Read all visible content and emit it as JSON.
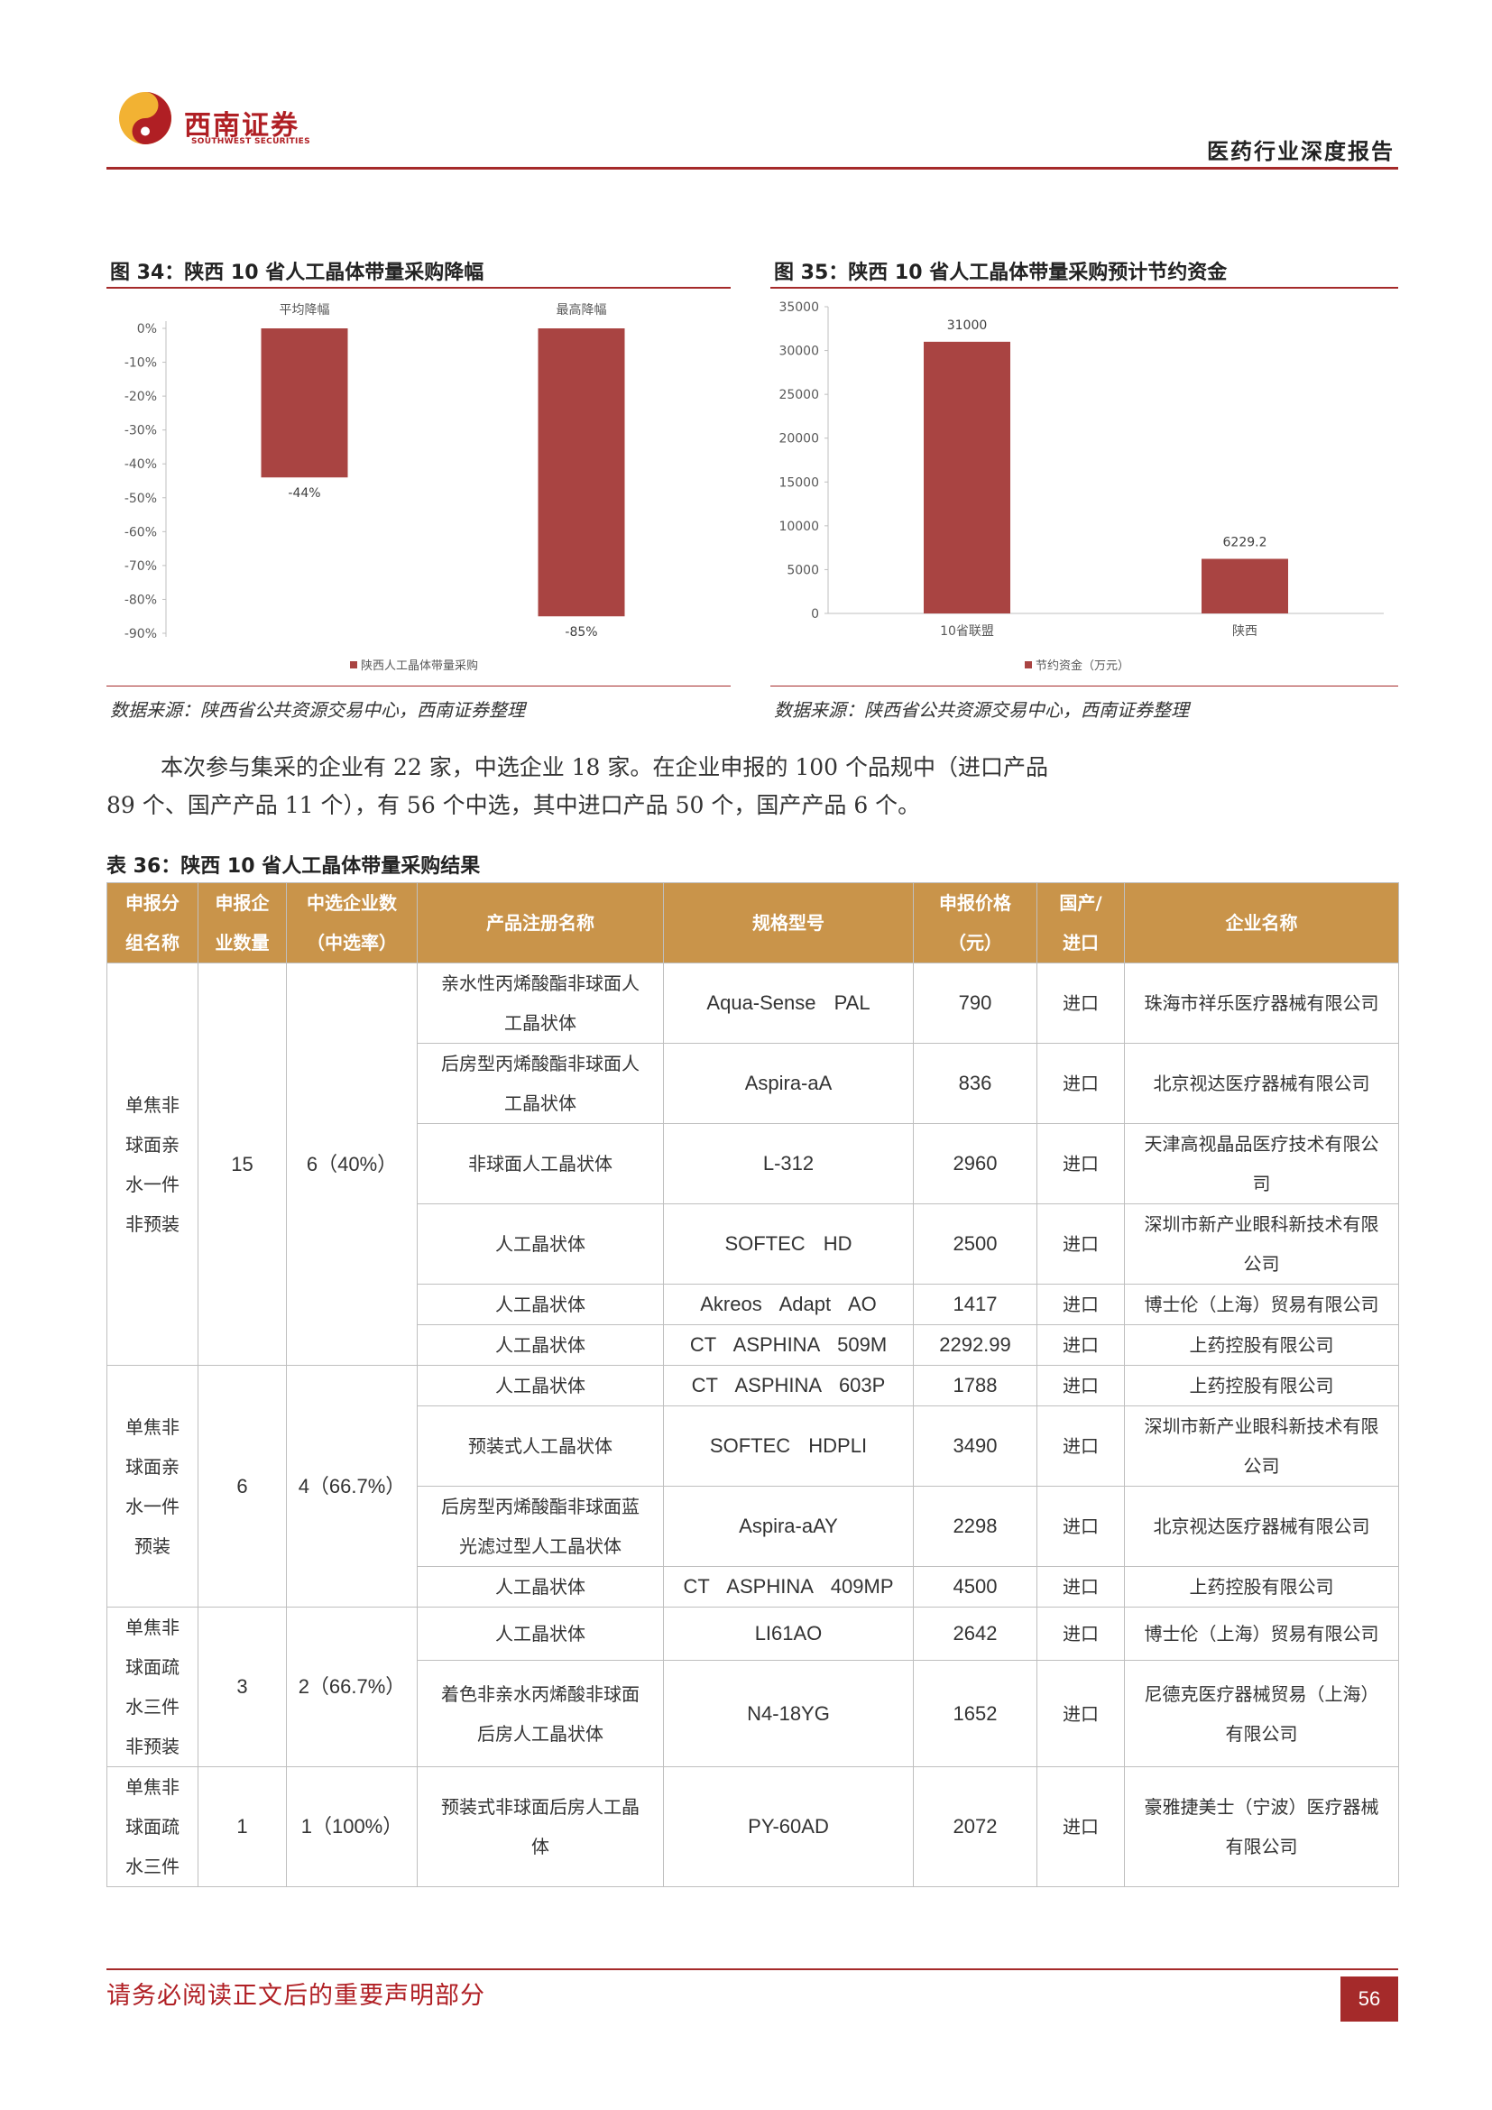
{
  "header": {
    "logo_cn": "西南证券",
    "logo_en": "SOUTHWEST SECURITIES",
    "report_title": "医药行业深度报告"
  },
  "figures": [
    {
      "title": "图 34：陕西 10 省人工晶体带量采购降幅",
      "source": "数据来源：陕西省公共资源交易中心，西南证券整理"
    },
    {
      "title": "图 35：陕西 10 省人工晶体带量采购预计节约资金",
      "source": "数据来源：陕西省公共资源交易中心，西南证券整理"
    }
  ],
  "chart_data": [
    {
      "type": "bar",
      "categories": [
        "平均降幅",
        "最高降幅"
      ],
      "values": [
        -44,
        -85
      ],
      "data_labels": [
        "-44%",
        "-85%"
      ],
      "ylim": [
        -90,
        0
      ],
      "yticks": [
        "0%",
        "-10%",
        "-20%",
        "-30%",
        "-40%",
        "-50%",
        "-60%",
        "-70%",
        "-80%",
        "-90%"
      ],
      "category_position": "top",
      "legend": "陕西人工晶体带量采购",
      "legend_position": "bottom",
      "color": "#a94442"
    },
    {
      "type": "bar",
      "categories": [
        "10省联盟",
        "陕西"
      ],
      "values": [
        31000,
        6229.2
      ],
      "data_labels": [
        "31000",
        "6229.2"
      ],
      "ylim": [
        0,
        35000
      ],
      "yticks": [
        "35000",
        "30000",
        "25000",
        "20000",
        "15000",
        "10000",
        "5000",
        "0"
      ],
      "legend": "节约资金（万元）",
      "legend_position": "bottom",
      "color": "#a94442"
    }
  ],
  "paragraph": {
    "line1": "本次参与集采的企业有 22 家，中选企业 18 家。在企业申报的 100 个品规中（进口产品",
    "line2": "89 个、国产产品 11 个），有 56 个中选，其中进口产品 50 个，国产产品 6 个。"
  },
  "table": {
    "title": "表 36：陕西 10 省人工晶体带量采购结果",
    "headers": [
      "申报分组名称",
      "申报企业数量",
      "中选企业数（中选率）",
      "产品注册名称",
      "规格型号",
      "申报价格（元）",
      "国产/进口",
      "企业名称"
    ],
    "groups": [
      {
        "name": "单焦非球面亲水一件非预装",
        "count": "15",
        "selected": "6（40%）",
        "rows": [
          {
            "product": "亲水性丙烯酸酯非球面人工晶状体",
            "model": "Aqua-Sense PAL",
            "price": "790",
            "origin": "进口",
            "company": "珠海市祥乐医疗器械有限公司"
          },
          {
            "product": "后房型丙烯酸酯非球面人工晶状体",
            "model": "Aspira-aA",
            "price": "836",
            "origin": "进口",
            "company": "北京视达医疗器械有限公司"
          },
          {
            "product": "非球面人工晶状体",
            "model": "L-312",
            "price": "2960",
            "origin": "进口",
            "company": "天津高视晶品医疗技术有限公司"
          },
          {
            "product": "人工晶状体",
            "model": "SOFTEC HD",
            "price": "2500",
            "origin": "进口",
            "company": "深圳市新产业眼科新技术有限公司"
          },
          {
            "product": "人工晶状体",
            "model": "Akreos Adapt AO",
            "price": "1417",
            "origin": "进口",
            "company": "博士伦（上海）贸易有限公司"
          },
          {
            "product": "人工晶状体",
            "model": "CT ASPHINA 509M",
            "price": "2292.99",
            "origin": "进口",
            "company": "上药控股有限公司"
          }
        ]
      },
      {
        "name": "单焦非球面亲水一件预装",
        "count": "6",
        "selected": "4（66.7%）",
        "rows": [
          {
            "product": "人工晶状体",
            "model": "CT ASPHINA 603P",
            "price": "1788",
            "origin": "进口",
            "company": "上药控股有限公司"
          },
          {
            "product": "预装式人工晶状体",
            "model": "SOFTEC HDPLI",
            "price": "3490",
            "origin": "进口",
            "company": "深圳市新产业眼科新技术有限公司"
          },
          {
            "product": "后房型丙烯酸酯非球面蓝光滤过型人工晶状体",
            "model": "Aspira-aAY",
            "price": "2298",
            "origin": "进口",
            "company": "北京视达医疗器械有限公司"
          },
          {
            "product": "人工晶状体",
            "model": "CT ASPHINA 409MP",
            "price": "4500",
            "origin": "进口",
            "company": "上药控股有限公司"
          }
        ]
      },
      {
        "name": "单焦非球面疏水三件非预装",
        "count": "3",
        "selected": "2（66.7%）",
        "rows": [
          {
            "product": "人工晶状体",
            "model": "LI61AO",
            "price": "2642",
            "origin": "进口",
            "company": "博士伦（上海）贸易有限公司"
          },
          {
            "product": "着色非亲水丙烯酸非球面后房人工晶状体",
            "model": "N4-18YG",
            "price": "1652",
            "origin": "进口",
            "company": "尼德克医疗器械贸易（上海）有限公司"
          }
        ]
      },
      {
        "name": "单焦非球面疏水三件",
        "count": "1",
        "selected": "1（100%）",
        "rows": [
          {
            "product": "预装式非球面后房人工晶体",
            "model": "PY-60AD",
            "price": "2072",
            "origin": "进口",
            "company": "豪雅捷美士（宁波）医疗器械有限公司"
          }
        ]
      }
    ]
  },
  "footer": {
    "disclaimer": "请务必阅读正文后的重要声明部分",
    "page": "56"
  }
}
